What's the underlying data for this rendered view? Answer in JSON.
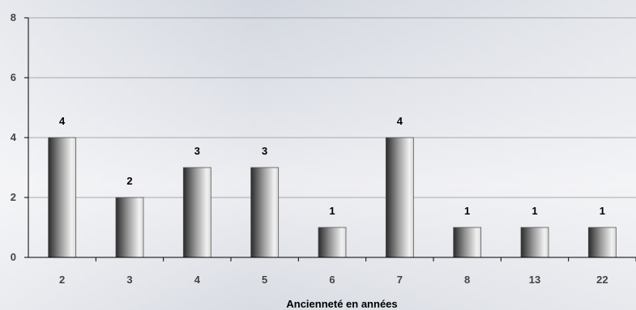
{
  "chart_data": {
    "type": "bar",
    "title": "",
    "xlabel": "Ancienneté en années",
    "ylabel": "",
    "categories": [
      "2",
      "3",
      "4",
      "5",
      "6",
      "7",
      "8",
      "13",
      "22"
    ],
    "values": [
      4,
      2,
      3,
      3,
      1,
      4,
      1,
      1,
      1
    ],
    "ylim": [
      0,
      8
    ],
    "yticks": [
      0,
      2,
      4,
      6,
      8
    ],
    "grid": true,
    "legend": "none",
    "data_labels": true
  }
}
